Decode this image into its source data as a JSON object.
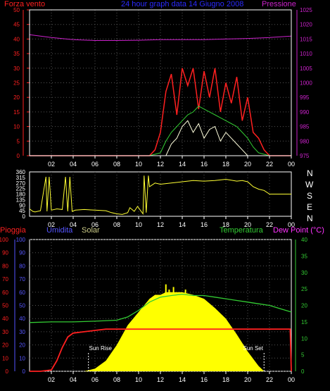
{
  "colors": {
    "wind": "#ff2020",
    "pressure": "#cc22cc",
    "header_center": "#2a2aff",
    "direction": "#ffff33",
    "rain": "#ff2020",
    "humidity": "#5555ff",
    "solar": "#cccc88",
    "temperature": "#33cc33",
    "dewpoint": "#ff33ff",
    "solar_fill": "#ffff00",
    "axis": "#ffffff",
    "grid": "#555555"
  },
  "header": {
    "wind_label": "Forza vento",
    "center_label": "24 hour graph data 14 Giugno 2008",
    "pressure_label": "Pressione"
  },
  "legend": {
    "rain": "Pioggia",
    "humidity": "Umidita",
    "solar": "Solar",
    "temperature": "Temperatura",
    "dewpoint": "Dew Point (°C)"
  },
  "direction_labels": [
    "N",
    "W",
    "S",
    "E",
    "N"
  ],
  "annotations": {
    "sun_rise": "Sun Rise",
    "sun_set": "Sun Set"
  },
  "chart_data": [
    {
      "type": "line",
      "title": "24 hour graph data 14 Giugno 2008",
      "x_ticks": [
        "02",
        "04",
        "06",
        "08",
        "10",
        "12",
        "14",
        "16",
        "18",
        "20",
        "22",
        "00"
      ],
      "y_left_ticks": [
        0,
        5,
        10,
        15,
        20,
        25,
        30,
        35,
        40,
        45,
        50
      ],
      "y_right_ticks": [
        975,
        980,
        985,
        990,
        995,
        1000,
        1005,
        1010,
        1015,
        1020,
        1025
      ],
      "ylim_left": [
        0,
        50
      ],
      "ylim_right": [
        975,
        1025
      ],
      "grid": true,
      "series": [
        {
          "name": "Forza vento",
          "axis": "left",
          "x": [
            0,
            5,
            11,
            11.5,
            12,
            12.5,
            13,
            13.5,
            14,
            14.5,
            15,
            15.5,
            16,
            16.5,
            17,
            17.5,
            18,
            18.5,
            19,
            19.5,
            20,
            20.5,
            21,
            21.5,
            22,
            24
          ],
          "y": [
            0,
            0,
            0,
            2,
            8,
            22,
            28,
            14,
            30,
            24,
            30,
            16,
            29,
            20,
            30,
            15,
            25,
            18,
            27,
            12,
            20,
            8,
            6,
            2,
            0,
            0
          ]
        },
        {
          "name": "Pressione",
          "axis": "right",
          "x": [
            0,
            2,
            4,
            6,
            8,
            10,
            12,
            14,
            16,
            18,
            20,
            22,
            24
          ],
          "y": [
            1016.5,
            1015.5,
            1014.8,
            1014.5,
            1014.5,
            1014.6,
            1014.8,
            1014.8,
            1014.8,
            1015,
            1015.2,
            1015.5,
            1016
          ]
        },
        {
          "x": [
            11,
            12,
            12.5,
            13,
            13.5,
            14,
            14.5,
            15,
            15.5,
            16,
            16.5,
            17,
            17.5,
            18,
            18.5,
            19,
            19.5,
            20,
            20.5,
            21,
            22
          ],
          "y": [
            0,
            1,
            5,
            8,
            10,
            12,
            14,
            15,
            17,
            16,
            15,
            14,
            13,
            12,
            11,
            10,
            8,
            6,
            3,
            1,
            0
          ]
        },
        {
          "x": [
            12.5,
            13,
            13.5,
            14,
            14.5,
            15,
            15.5,
            16,
            16.5,
            17,
            17.5,
            18,
            18.5,
            19,
            19.5,
            20
          ],
          "y": [
            0,
            4,
            6,
            10,
            12,
            8,
            11,
            6,
            9,
            10,
            5,
            8,
            6,
            4,
            2,
            0
          ]
        }
      ]
    },
    {
      "type": "line",
      "x_ticks": [
        "02",
        "04",
        "06",
        "08",
        "10",
        "12",
        "14",
        "16",
        "18",
        "20",
        "22",
        "00"
      ],
      "y_ticks": [
        0,
        45,
        90,
        135,
        180,
        225,
        270,
        315,
        360
      ],
      "ylim": [
        0,
        360
      ],
      "series": [
        {
          "x": [
            0,
            0.3,
            0.5,
            1,
            1.5,
            1.6,
            1.8,
            2,
            2.5,
            3,
            3.3,
            3.5,
            3.7,
            3.9,
            4.2,
            5,
            6,
            7,
            7.5,
            8,
            8.5,
            9,
            9.2,
            9.6,
            9.9,
            10.4,
            10.5,
            10.7,
            10.9,
            11,
            11.5,
            12,
            13,
            14,
            15,
            16,
            17,
            18,
            19,
            19.5,
            20,
            20.5,
            21,
            21.5,
            22,
            23,
            24
          ],
          "y": [
            60,
            40,
            35,
            45,
            320,
            40,
            320,
            50,
            60,
            55,
            320,
            40,
            320,
            40,
            50,
            55,
            50,
            45,
            30,
            20,
            15,
            30,
            70,
            40,
            80,
            20,
            330,
            30,
            330,
            240,
            270,
            260,
            270,
            280,
            290,
            285,
            290,
            300,
            285,
            290,
            280,
            240,
            220,
            210,
            180,
            180,
            180
          ]
        }
      ]
    },
    {
      "type": "line",
      "x_ticks": [
        "02",
        "04",
        "06",
        "08",
        "10",
        "12",
        "14",
        "16",
        "18",
        "20",
        "22",
        "00"
      ],
      "y_left_ticks": [
        0,
        10,
        20,
        30,
        40,
        50,
        60,
        70,
        80,
        90,
        100
      ],
      "y_right_ticks": [
        0,
        5,
        10,
        15,
        20,
        25,
        30,
        35,
        40
      ],
      "ylim_left": [
        0,
        100
      ],
      "ylim_right": [
        0,
        40
      ],
      "series": [
        {
          "name": "Pioggia",
          "axis": "left",
          "x": [
            0,
            1,
            2,
            2.5,
            3,
            3.5,
            4,
            5,
            6,
            7,
            8,
            12,
            16,
            20,
            23.9,
            24
          ],
          "y": [
            0,
            0,
            1,
            8,
            18,
            26,
            29,
            30,
            31,
            32,
            32,
            32,
            32,
            32,
            32,
            0
          ]
        },
        {
          "name": "Solar",
          "axis": "left",
          "x": [
            5,
            6,
            7,
            8,
            9,
            10,
            10.5,
            11,
            11.5,
            12,
            12.5,
            13,
            14,
            15,
            16,
            17,
            18,
            19,
            20,
            21,
            21.5
          ],
          "y": [
            0,
            2,
            8,
            20,
            35,
            45,
            50,
            55,
            58,
            58,
            60,
            60,
            60,
            58,
            55,
            48,
            40,
            28,
            15,
            4,
            0
          ]
        },
        {
          "name": "Temperatura",
          "axis": "right",
          "x": [
            0,
            2,
            4,
            6,
            8,
            9,
            10,
            11,
            12,
            13,
            14,
            15,
            16,
            17,
            18,
            19,
            20,
            21,
            22,
            23,
            24
          ],
          "y": [
            14.8,
            15,
            15,
            15.2,
            15.5,
            16.5,
            18.5,
            21,
            22.5,
            23,
            23.4,
            23,
            23,
            22.5,
            22,
            21.5,
            21,
            20.5,
            20,
            19,
            18
          ]
        }
      ]
    }
  ]
}
